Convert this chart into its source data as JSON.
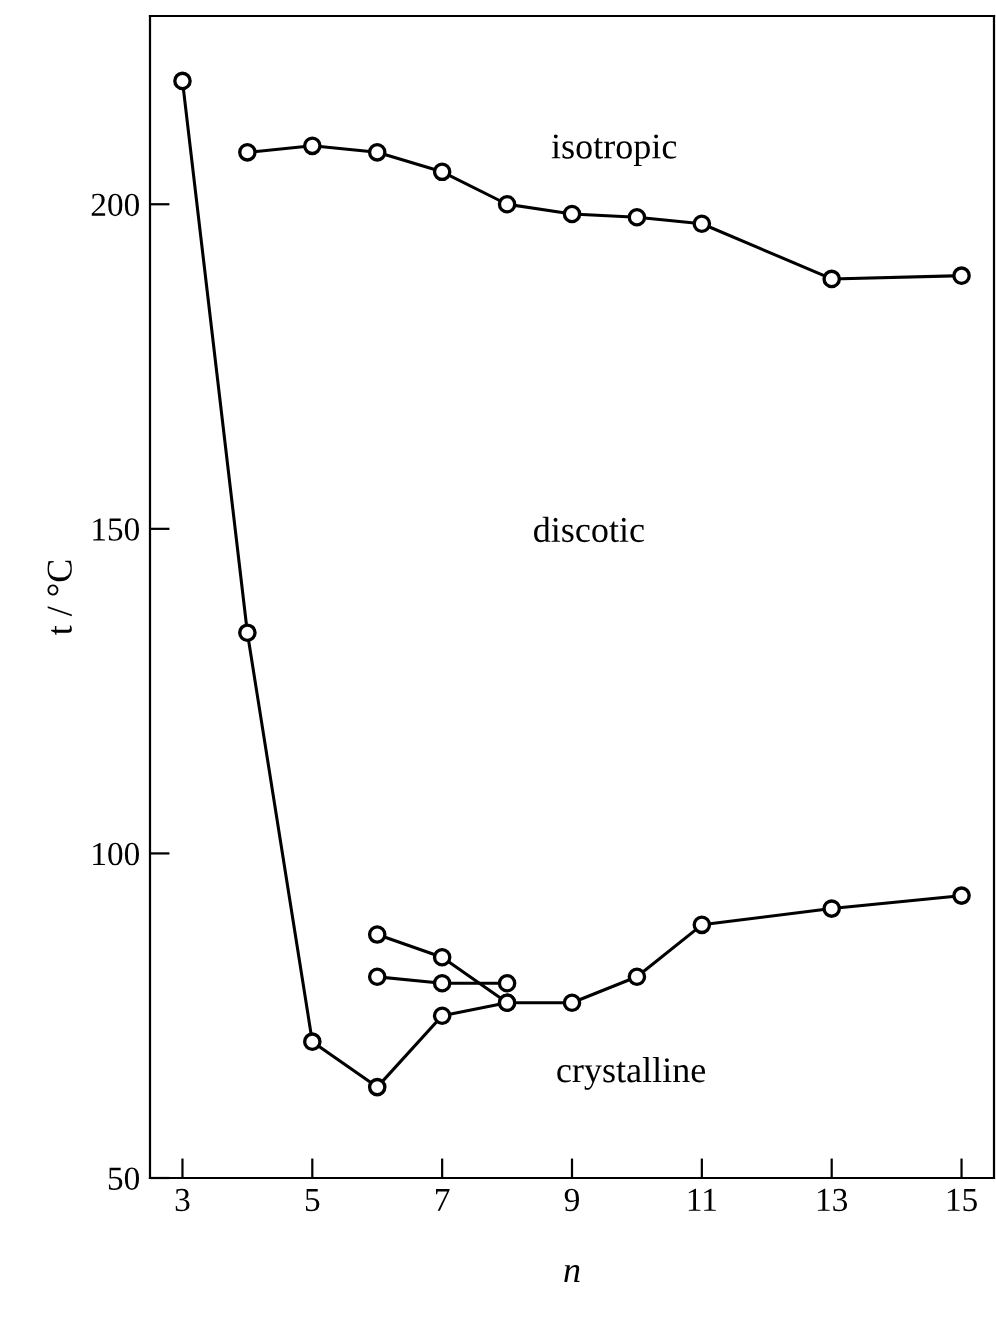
{
  "chart_data": {
    "type": "line",
    "xlabel": "n",
    "ylabel": "t / °C",
    "xlim": [
      2.5,
      15.5
    ],
    "xticks": [
      3,
      5,
      7,
      9,
      11,
      13,
      15
    ],
    "ylim": [
      50,
      229
    ],
    "yticks": [
      50,
      100,
      150,
      200
    ],
    "marker": "circle",
    "grid": false,
    "legend": false,
    "series": [
      {
        "color": "#000000",
        "x": [
          4,
          5,
          6,
          7,
          8,
          9,
          10,
          11,
          13,
          15
        ],
        "values": [
          208,
          209,
          208,
          205,
          200,
          198.5,
          198,
          197,
          188.5,
          189
        ]
      },
      {
        "color": "#000000",
        "x": [
          3,
          4,
          5,
          6,
          7,
          8,
          9,
          10,
          11,
          13,
          15
        ],
        "values": [
          219,
          134,
          71,
          64,
          75,
          77,
          77,
          81,
          89,
          91.5,
          93.5
        ]
      },
      {
        "color": "#000000",
        "x": [
          6,
          7,
          8
        ],
        "values": [
          87.5,
          84,
          77
        ]
      },
      {
        "color": "#000000",
        "x": [
          6,
          7,
          8
        ],
        "values": [
          81,
          80,
          80
        ]
      }
    ],
    "annotations": [
      "isotropic",
      "discotic",
      "crystalline"
    ]
  }
}
